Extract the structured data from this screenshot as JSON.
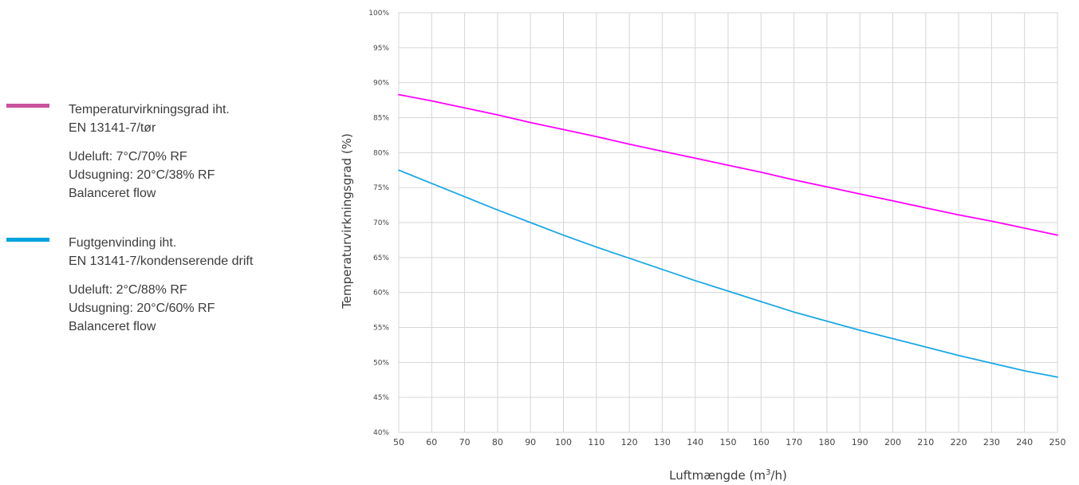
{
  "legend": {
    "items": [
      {
        "color": "#c9529e",
        "title_lines": [
          "Temperaturvirkningsgrad iht.",
          "EN 13141-7/tør"
        ],
        "notes": [
          "Udeluft: 7°C/70% RF",
          "Udsugning: 20°C/38% RF",
          "Balanceret flow"
        ]
      },
      {
        "color": "#00a3dd",
        "title_lines": [
          "Fugtgenvinding iht.",
          "EN 13141-7/kondenserende drift"
        ],
        "notes": [
          "Udeluft: 2°C/88% RF",
          "Udsugning: 20°C/60% RF",
          "Balanceret flow"
        ]
      }
    ]
  },
  "chart_data": {
    "type": "line",
    "xlabel_main": "Luftmængde (m",
    "xlabel_sup": "3",
    "xlabel_tail": "/h)",
    "ylabel": "Temperaturvirkningsgrad (%)",
    "xlim": [
      50,
      250
    ],
    "ylim": [
      40,
      100
    ],
    "x_ticks": [
      50,
      60,
      70,
      80,
      90,
      100,
      110,
      120,
      130,
      140,
      150,
      160,
      170,
      180,
      190,
      200,
      210,
      220,
      230,
      240,
      250
    ],
    "y_ticks": [
      40,
      45,
      50,
      55,
      60,
      65,
      70,
      75,
      80,
      85,
      90,
      95,
      100
    ],
    "y_tick_suffix": "%",
    "grid": true,
    "series": [
      {
        "color": "#ff00ff",
        "x": [
          50,
          60,
          70,
          80,
          90,
          100,
          110,
          120,
          130,
          140,
          150,
          160,
          170,
          180,
          190,
          200,
          210,
          220,
          230,
          240,
          250
        ],
        "y": [
          88.3,
          87.4,
          86.4,
          85.4,
          84.3,
          83.3,
          82.3,
          81.2,
          80.2,
          79.2,
          78.2,
          77.2,
          76.1,
          75.1,
          74.1,
          73.1,
          72.1,
          71.1,
          70.2,
          69.2,
          68.2
        ]
      },
      {
        "color": "#1aa8e6",
        "x": [
          50,
          60,
          70,
          80,
          90,
          100,
          110,
          120,
          130,
          140,
          150,
          160,
          170,
          180,
          190,
          200,
          210,
          220,
          230,
          240,
          250
        ],
        "y": [
          77.5,
          75.6,
          73.7,
          71.8,
          70.0,
          68.2,
          66.5,
          64.9,
          63.3,
          61.7,
          60.2,
          58.7,
          57.2,
          55.9,
          54.6,
          53.4,
          52.2,
          51.0,
          49.9,
          48.8,
          47.9
        ]
      }
    ]
  }
}
